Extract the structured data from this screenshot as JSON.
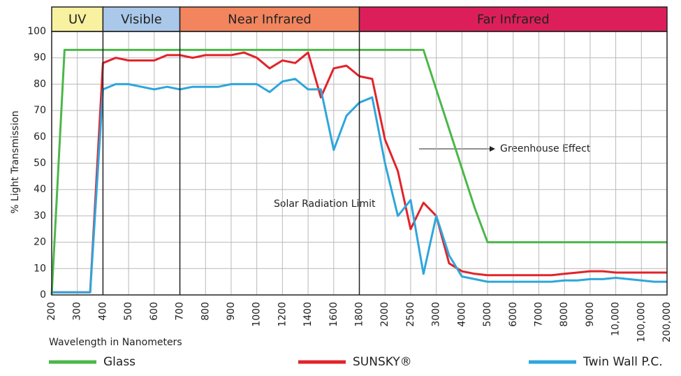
{
  "chart_data": {
    "type": "line",
    "y_label": "% Light Transmission",
    "x_label": "Wavelength in Nanometers",
    "categories": [
      "200",
      null,
      "300",
      null,
      "400",
      null,
      "500",
      null,
      "600",
      null,
      "700",
      null,
      "800",
      null,
      "900",
      null,
      "1000",
      null,
      "1200",
      null,
      "1400",
      null,
      "1600",
      null,
      "1800",
      null,
      "2000",
      null,
      "2500",
      null,
      "3000",
      null,
      "4000",
      null,
      "5000",
      null,
      "6000",
      null,
      "7000",
      null,
      "8000",
      null,
      "9000",
      null,
      "10,000",
      null,
      "100,000",
      null,
      "200,000"
    ],
    "series": [
      {
        "name": "Glass",
        "color": "#4cb748",
        "values": [
          0,
          93,
          93,
          93,
          93,
          93,
          93,
          93,
          93,
          93,
          93,
          93,
          93,
          93,
          93,
          93,
          93,
          93,
          93,
          93,
          93,
          93,
          93,
          93,
          93,
          93,
          93,
          93,
          93,
          93,
          78,
          63,
          48,
          33,
          20,
          20,
          20,
          20,
          20,
          20,
          20,
          20,
          20,
          20,
          20,
          20,
          20,
          20,
          20
        ]
      },
      {
        "name": "SUNSKY®",
        "color": "#e2232a",
        "values": [
          1,
          1,
          1,
          1,
          88,
          90,
          89,
          89,
          89,
          91,
          91,
          90,
          91,
          91,
          91,
          92,
          90,
          86,
          89,
          88,
          92,
          75,
          86,
          87,
          83,
          82,
          59,
          47,
          25,
          35,
          30,
          12,
          9,
          8,
          7.5,
          7.5,
          7.5,
          7.5,
          7.5,
          7.5,
          8,
          8.5,
          9,
          9,
          8.5,
          8.5,
          8.5,
          8.5,
          8.5
        ]
      },
      {
        "name": "Twin Wall P.C.",
        "color": "#2ea6dc",
        "values": [
          1,
          1,
          1,
          1,
          78,
          80,
          80,
          79,
          78,
          79,
          78,
          79,
          79,
          79,
          80,
          80,
          80,
          77,
          81,
          82,
          78,
          78,
          55,
          68,
          73,
          75,
          50,
          30,
          36,
          8,
          30,
          15,
          7,
          6,
          5,
          5,
          5,
          5,
          5,
          5,
          5.5,
          5.5,
          6,
          6,
          6.5,
          6,
          5.5,
          5,
          5
        ]
      }
    ],
    "bands": [
      {
        "label": "UV",
        "start": "200",
        "end": "400",
        "color": "#f8f1a0"
      },
      {
        "label": "Visible",
        "start": "400",
        "end": "700",
        "color": "#aac8ea"
      },
      {
        "label": "Near Infrared",
        "start": "700",
        "end": "1800",
        "color": "#f2855e"
      },
      {
        "label": "Far Infrared",
        "start": "1800",
        "end": "200,000",
        "color": "#dc1f5a"
      }
    ],
    "annotations": [
      "Solar Radiation Limit",
      "Greenhouse Effect"
    ],
    "ylim": [
      0,
      100
    ],
    "yticks": [
      0,
      10,
      20,
      30,
      40,
      50,
      60,
      70,
      80,
      90,
      100
    ],
    "grid": true,
    "legend": "bottom"
  }
}
